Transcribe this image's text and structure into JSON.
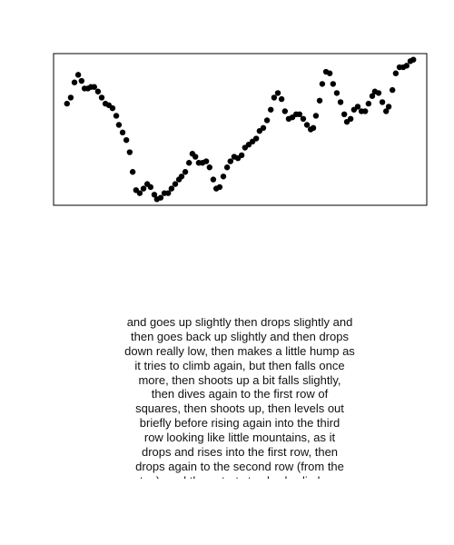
{
  "chart_data": {
    "type": "scatter",
    "color": "#000000",
    "xlim": [
      0,
      100
    ],
    "ylim": [
      0,
      100
    ],
    "x": [
      3.6,
      4.6,
      5.6,
      6.6,
      7.5,
      8.3,
      9.2,
      10,
      10.9,
      11.9,
      12.9,
      13.9,
      14.8,
      15.8,
      16.8,
      17.5,
      18.5,
      19.5,
      20.4,
      21.2,
      22.1,
      23.1,
      24.1,
      25.1,
      26,
      27,
      27.7,
      28.7,
      29.7,
      30.7,
      31.6,
      32.6,
      33.6,
      34.3,
      35.3,
      36.3,
      37.2,
      38,
      38.9,
      39.9,
      40.9,
      41.8,
      42.8,
      43.6,
      44.5,
      45.5,
      46.5,
      47.4,
      48.4,
      49.4,
      50.4,
      51.3,
      52.3,
      53.3,
      54.3,
      55.2,
      56.2,
      57.2,
      58.2,
      59.1,
      60.1,
      61.1,
      62,
      63,
      64,
      65,
      65.9,
      66.9,
      67.9,
      68.9,
      69.6,
      70.3,
      71.3,
      72,
      73,
      74,
      74.9,
      75.9,
      76.9,
      77.9,
      78.6,
      79.6,
      80.5,
      81.5,
      82.5,
      83.5,
      84.4,
      85.4,
      86.1,
      87.1,
      88.1,
      89.1,
      89.8,
      90.8,
      91.7,
      92.7,
      93.7,
      94.6,
      95.6,
      96.4
    ],
    "values": [
      67,
      71,
      81,
      86,
      82,
      77,
      77,
      78,
      78,
      75,
      71,
      67,
      66,
      64,
      59,
      53,
      48,
      43,
      35,
      22,
      10,
      8,
      11,
      14,
      12,
      7,
      4,
      5,
      8,
      8,
      11,
      14,
      17,
      19,
      22,
      28,
      34,
      32,
      28,
      28,
      29,
      25,
      17,
      11,
      12,
      19,
      25,
      29,
      32,
      31,
      33,
      38,
      40,
      42,
      44,
      49,
      51,
      56,
      63,
      71,
      74,
      70,
      62,
      57,
      58,
      60,
      60,
      57,
      53,
      50,
      51,
      59,
      69,
      80,
      88,
      87,
      80,
      74,
      68,
      60,
      55,
      57,
      63,
      65,
      62,
      62,
      67,
      72,
      75,
      74,
      68,
      62,
      65,
      76,
      87,
      91,
      91,
      92,
      95,
      96
    ]
  },
  "caption_lines": [
    "and goes up slightly then drops slightly and",
    "then goes back up slightly and then drops",
    "down really low, then makes a little hump as",
    "it tries to climb again, but then falls once",
    "more, then shoots up a bit falls slightly,",
    "then dives again to the first row of",
    "squares, then shoots up, then levels out",
    "briefly before rising again into the third",
    "row looking like little mountains, as it",
    "drops and rises into the first row, then",
    "drops again to the second row (from the",
    "top), and then starts to slowly climb as"
  ]
}
